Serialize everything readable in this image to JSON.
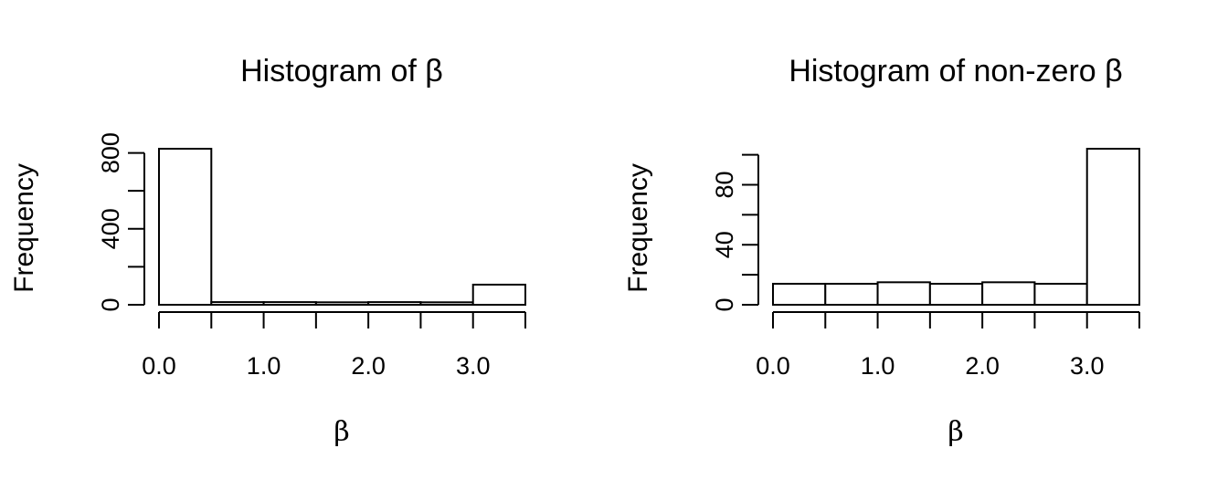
{
  "chart_data": [
    {
      "type": "bar",
      "title": "Histogram of β",
      "xlabel": "β",
      "ylabel": "Frequency",
      "bins": [
        [
          0.0,
          0.5
        ],
        [
          0.5,
          1.0
        ],
        [
          1.0,
          1.5
        ],
        [
          1.5,
          2.0
        ],
        [
          2.0,
          2.5
        ],
        [
          2.5,
          3.0
        ],
        [
          3.0,
          3.5
        ]
      ],
      "values": [
        822,
        14,
        14,
        13,
        14,
        13,
        106
      ],
      "xticks": [
        0.0,
        0.5,
        1.0,
        1.5,
        2.0,
        2.5,
        3.0,
        3.5
      ],
      "xtick_labels": [
        "0.0",
        "1.0",
        "2.0",
        "3.0"
      ],
      "yticks": [
        0,
        200,
        400,
        600,
        800
      ],
      "ytick_labels": [
        "0",
        "400",
        "800"
      ],
      "xlim": [
        0,
        3.5
      ],
      "ylim": [
        0,
        822
      ]
    },
    {
      "type": "bar",
      "title": "Histogram of non-zero β",
      "xlabel": "β",
      "ylabel": "Frequency",
      "bins": [
        [
          0.0,
          0.5
        ],
        [
          0.5,
          1.0
        ],
        [
          1.0,
          1.5
        ],
        [
          1.5,
          2.0
        ],
        [
          2.0,
          2.5
        ],
        [
          2.5,
          3.0
        ],
        [
          3.0,
          3.5
        ]
      ],
      "values": [
        14,
        14,
        15,
        14,
        15,
        14,
        104
      ],
      "xticks": [
        0.0,
        0.5,
        1.0,
        1.5,
        2.0,
        2.5,
        3.0,
        3.5
      ],
      "xtick_labels": [
        "0.0",
        "1.0",
        "2.0",
        "3.0"
      ],
      "yticks": [
        0,
        20,
        40,
        60,
        80,
        100
      ],
      "ytick_labels": [
        "0",
        "40",
        "80"
      ],
      "xlim": [
        0,
        3.5
      ],
      "ylim": [
        0,
        104
      ]
    }
  ]
}
